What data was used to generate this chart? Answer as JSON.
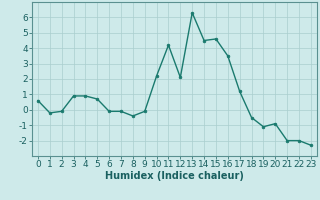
{
  "x": [
    0,
    1,
    2,
    3,
    4,
    5,
    6,
    7,
    8,
    9,
    10,
    11,
    12,
    13,
    14,
    15,
    16,
    17,
    18,
    19,
    20,
    21,
    22,
    23
  ],
  "y": [
    0.6,
    -0.2,
    -0.1,
    0.9,
    0.9,
    0.7,
    -0.1,
    -0.1,
    -0.4,
    -0.1,
    2.2,
    4.2,
    2.1,
    6.3,
    4.5,
    4.6,
    3.5,
    1.2,
    -0.5,
    -1.1,
    -0.9,
    -2.0,
    -2.0,
    -2.3
  ],
  "line_color": "#1a7a6e",
  "marker": "o",
  "markersize": 2.0,
  "linewidth": 1.0,
  "xlabel": "Humidex (Indice chaleur)",
  "xlabel_fontsize": 7,
  "xlim": [
    -0.5,
    23.5
  ],
  "ylim": [
    -3.0,
    7.0
  ],
  "yticks": [
    -2,
    -1,
    0,
    1,
    2,
    3,
    4,
    5,
    6
  ],
  "xticks": [
    0,
    1,
    2,
    3,
    4,
    5,
    6,
    7,
    8,
    9,
    10,
    11,
    12,
    13,
    14,
    15,
    16,
    17,
    18,
    19,
    20,
    21,
    22,
    23
  ],
  "bg_color": "#ceeaea",
  "grid_color": "#aacece",
  "tick_fontsize": 6.5,
  "axes_color": "#1a6060",
  "spine_color": "#5a9090"
}
